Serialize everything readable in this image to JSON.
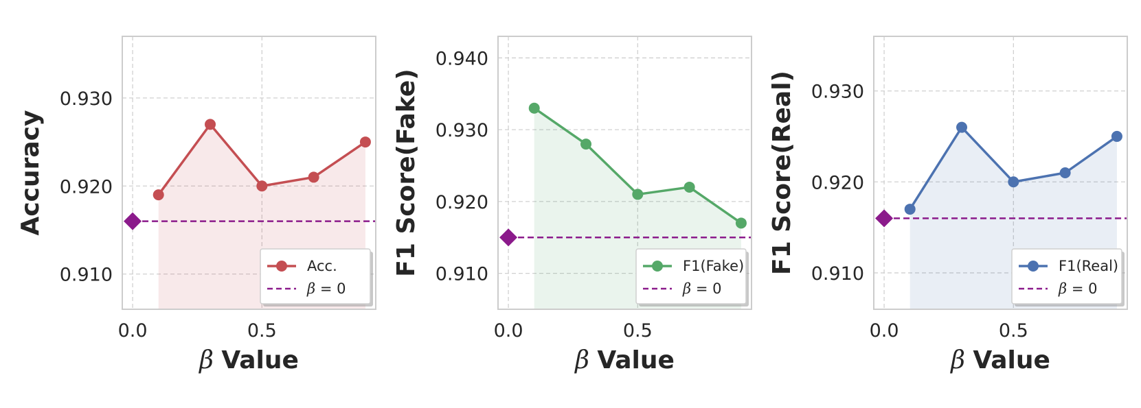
{
  "chart_data": [
    {
      "type": "line",
      "title": "",
      "xlabel": "β Value",
      "ylabel": "Accuracy",
      "x": [
        0.1,
        0.3,
        0.5,
        0.7,
        0.9
      ],
      "series": [
        {
          "name": "Acc.",
          "values": [
            0.919,
            0.927,
            0.92,
            0.921,
            0.925
          ],
          "color": "#c44e52",
          "fill": true
        }
      ],
      "baseline": {
        "name": "β = 0",
        "x": 0.0,
        "value": 0.916,
        "color": "#8b1a8b",
        "marker": "diamond",
        "linestyle": "dashed"
      },
      "xticks": [
        "0.0",
        "0.5"
      ],
      "yticks": [
        "0.910",
        "0.920",
        "0.930"
      ],
      "xlim": [
        -0.04,
        0.94
      ],
      "ylim": [
        0.906,
        0.937
      ],
      "grid": true,
      "legend_position": "lower-right"
    },
    {
      "type": "line",
      "title": "",
      "xlabel": "β Value",
      "ylabel": "F1 Score(Fake)",
      "x": [
        0.1,
        0.3,
        0.5,
        0.7,
        0.9
      ],
      "series": [
        {
          "name": "F1(Fake)",
          "values": [
            0.933,
            0.928,
            0.921,
            0.922,
            0.917
          ],
          "color": "#55a868",
          "fill": true
        }
      ],
      "baseline": {
        "name": "β = 0",
        "x": 0.0,
        "value": 0.915,
        "color": "#8b1a8b",
        "marker": "diamond",
        "linestyle": "dashed"
      },
      "xticks": [
        "0.0",
        "0.5"
      ],
      "yticks": [
        "0.910",
        "0.920",
        "0.930",
        "0.940"
      ],
      "xlim": [
        -0.04,
        0.94
      ],
      "ylim": [
        0.905,
        0.943
      ],
      "grid": true,
      "legend_position": "lower-right"
    },
    {
      "type": "line",
      "title": "",
      "xlabel": "β Value",
      "ylabel": "F1 Score(Real)",
      "x": [
        0.1,
        0.3,
        0.5,
        0.7,
        0.9
      ],
      "series": [
        {
          "name": "F1(Real)",
          "values": [
            0.917,
            0.926,
            0.92,
            0.921,
            0.925
          ],
          "color": "#4c72b0",
          "fill": true
        }
      ],
      "baseline": {
        "name": "β = 0",
        "x": 0.0,
        "value": 0.916,
        "color": "#8b1a8b",
        "marker": "diamond",
        "linestyle": "dashed"
      },
      "xticks": [
        "0.0",
        "0.5"
      ],
      "yticks": [
        "0.910",
        "0.920",
        "0.930"
      ],
      "xlim": [
        -0.04,
        0.94
      ],
      "ylim": [
        0.906,
        0.936
      ],
      "grid": true,
      "legend_position": "lower-right"
    }
  ]
}
